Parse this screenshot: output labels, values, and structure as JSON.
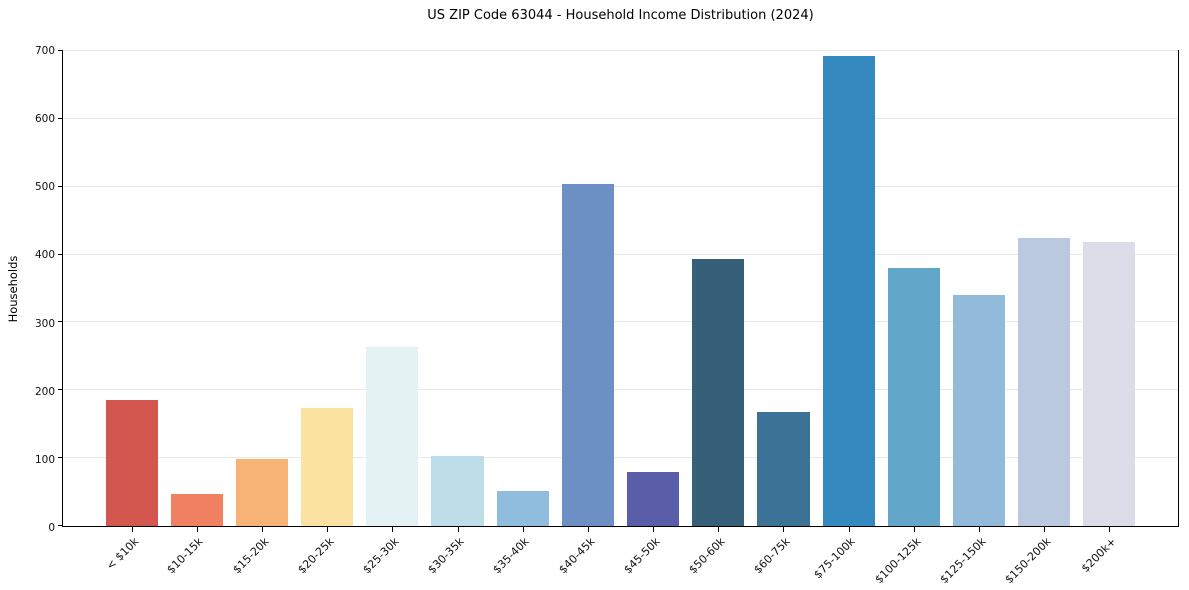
{
  "chart_data": {
    "type": "bar",
    "title": "US ZIP Code 63044 - Household Income Distribution (2024)",
    "xlabel": "",
    "ylabel": "Households",
    "categories": [
      "< $10k",
      "$10-15k",
      "$15-20k",
      "$20-25k",
      "$25-30k",
      "$30-35k",
      "$35-40k",
      "$40-45k",
      "$45-50k",
      "$50-60k",
      "$60-75k",
      "$75-100k",
      "$100-125k",
      "$125-150k",
      "$150-200k",
      "$200k+"
    ],
    "values": [
      186,
      47,
      99,
      174,
      264,
      103,
      52,
      504,
      79,
      394,
      168,
      693,
      380,
      340,
      424,
      418
    ],
    "bar_colors": [
      "#d4574f",
      "#ef8062",
      "#f7b376",
      "#fbe2a0",
      "#e5f2f3",
      "#bddde9",
      "#90bddd",
      "#6c90c4",
      "#5a5ea8",
      "#366077",
      "#3b7296",
      "#348abf",
      "#62a6ca",
      "#92badb",
      "#bac9e0",
      "#dadce8"
    ],
    "ylim": [
      0,
      700
    ],
    "yticks": [
      0,
      100,
      200,
      300,
      400,
      500,
      600,
      700
    ],
    "grid": "horizontal gridlines on",
    "legend": "none",
    "background_color": "#ffffff",
    "grid_color": "#e8e8e8",
    "axis_color": "#000000",
    "text_color": "#111111"
  }
}
